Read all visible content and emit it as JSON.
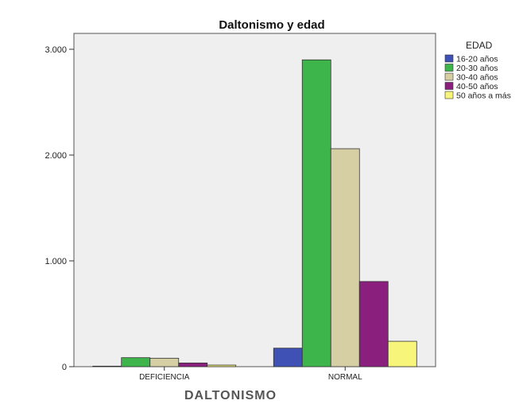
{
  "chart_data": {
    "type": "bar",
    "title": "Daltonismo y edad",
    "xlabel": "DALTONISMO",
    "ylabel": "",
    "categories": [
      "DEFICIENCIA",
      "NORMAL"
    ],
    "series": [
      {
        "name": "16-20 años",
        "color": "#3F51B5",
        "values": [
          5,
          175
        ]
      },
      {
        "name": "20-30 años",
        "color": "#3DB54A",
        "values": [
          85,
          2900
        ]
      },
      {
        "name": "30-40 años",
        "color": "#D6CFA4",
        "values": [
          80,
          2060
        ]
      },
      {
        "name": "40-50 años",
        "color": "#8B1F7E",
        "values": [
          35,
          805
        ]
      },
      {
        "name": "50 años a más",
        "color": "#F7F57A",
        "values": [
          15,
          240
        ]
      }
    ],
    "legend_title": "EDAD",
    "legend_position": "right",
    "ylim": [
      0,
      3150
    ],
    "yticks": [
      0,
      1000,
      2000,
      3000
    ],
    "ytick_labels": [
      "0",
      "1.000",
      "2.000",
      "3.000"
    ],
    "grid": false,
    "plot_background": "#EFEFEF"
  }
}
